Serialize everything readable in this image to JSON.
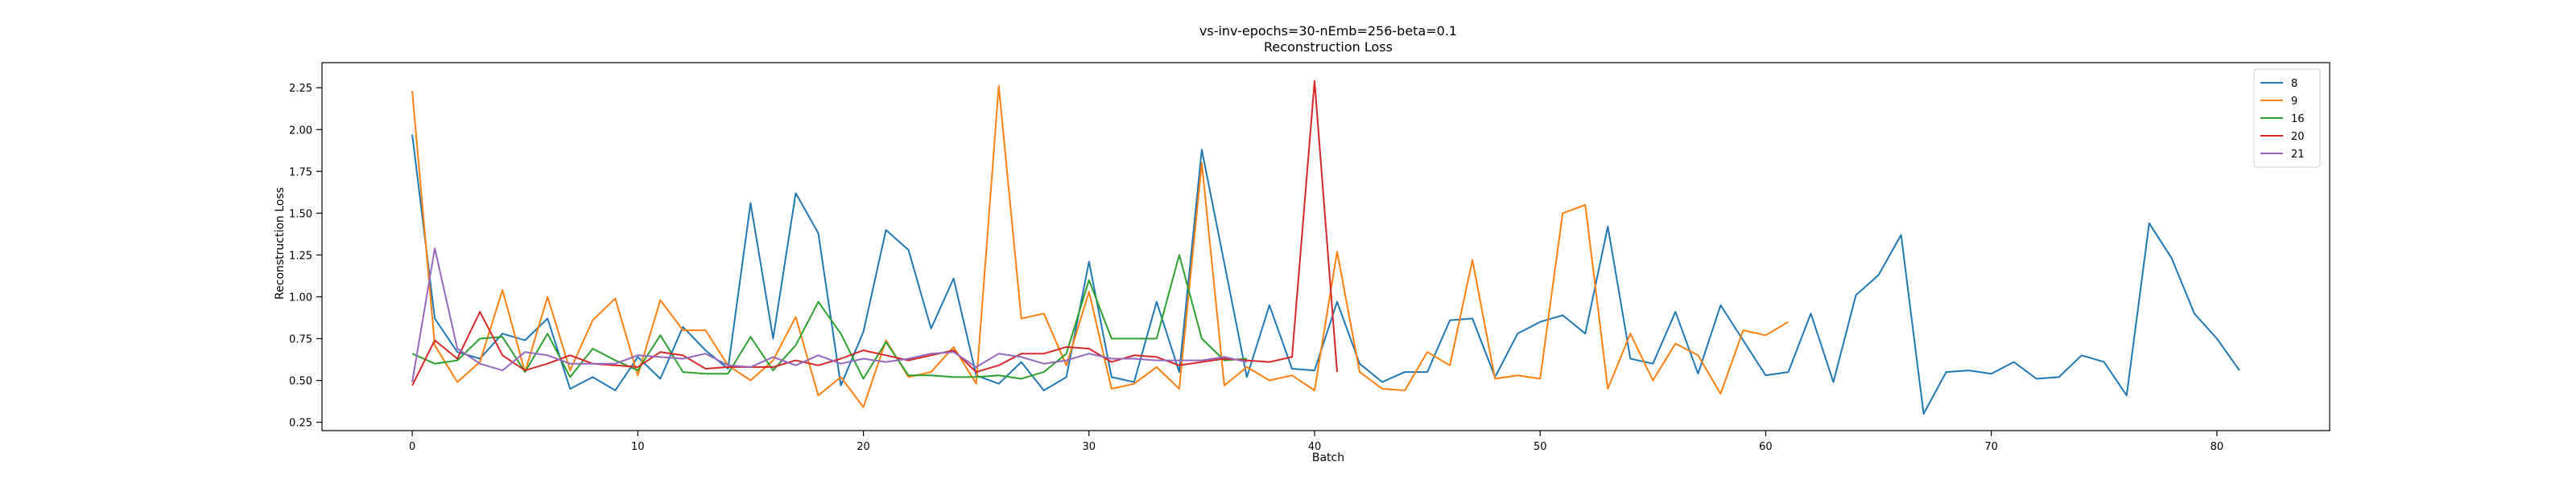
{
  "chart_data": {
    "type": "line",
    "title": "vs-inv-epochs=30-nEmb=256-beta=0.1",
    "subtitle": "Reconstruction Loss",
    "xlabel": "Batch",
    "ylabel": "Reconstruction Loss",
    "xlim": [
      -4,
      85
    ],
    "ylim": [
      0.2,
      2.4
    ],
    "xticks": [
      0,
      10,
      20,
      30,
      40,
      50,
      60,
      70,
      80
    ],
    "yticks": [
      0.25,
      0.5,
      0.75,
      1.0,
      1.25,
      1.5,
      1.75,
      2.0,
      2.25
    ],
    "ytick_labels": [
      "0.25",
      "0.50",
      "0.75",
      "1.00",
      "1.25",
      "1.50",
      "1.75",
      "2.00",
      "2.25"
    ],
    "grid": false,
    "legend_position": "top-right",
    "series": [
      {
        "name": "8",
        "color": "#1f77b4",
        "values": [
          1.97,
          0.87,
          0.67,
          0.63,
          0.78,
          0.74,
          0.87,
          0.45,
          0.52,
          0.44,
          0.64,
          0.51,
          0.82,
          0.68,
          0.57,
          1.56,
          0.75,
          1.62,
          1.38,
          0.47,
          0.79,
          1.4,
          1.28,
          0.81,
          1.11,
          0.53,
          0.48,
          0.61,
          0.44,
          0.52,
          1.21,
          0.52,
          0.49,
          0.97,
          0.55,
          1.88,
          1.2,
          0.52,
          0.95,
          0.57,
          0.56,
          0.97,
          0.6,
          0.49,
          0.55,
          0.55,
          0.86,
          0.87,
          0.52,
          0.78,
          0.85,
          0.89,
          0.78,
          1.42,
          0.63,
          0.6,
          0.91,
          0.54,
          0.95,
          0.74,
          0.53,
          0.55,
          0.9,
          0.49,
          1.01,
          1.13,
          1.37,
          0.3,
          0.55,
          0.56,
          0.54,
          0.61,
          0.51,
          0.52,
          0.65,
          0.61,
          0.41,
          1.44,
          1.23,
          0.9,
          0.75,
          0.56
        ]
      },
      {
        "name": "9",
        "color": "#ff7f0e",
        "values": [
          2.23,
          0.71,
          0.49,
          0.61,
          1.04,
          0.55,
          1.0,
          0.56,
          0.86,
          0.99,
          0.53,
          0.98,
          0.8,
          0.8,
          0.59,
          0.5,
          0.62,
          0.88,
          0.41,
          0.52,
          0.34,
          0.74,
          0.52,
          0.55,
          0.7,
          0.48,
          2.26,
          0.87,
          0.9,
          0.59,
          1.03,
          0.45,
          0.48,
          0.58,
          0.45,
          1.8,
          0.47,
          0.58,
          0.5,
          0.53,
          0.44,
          1.27,
          0.55,
          0.45,
          0.44,
          0.67,
          0.59,
          1.22,
          0.51,
          0.53,
          0.51,
          1.5,
          1.55,
          0.45,
          0.78,
          0.5,
          0.72,
          0.65,
          0.42,
          0.8,
          0.77,
          0.85
        ]
      },
      {
        "name": "16",
        "color": "#2ca02c",
        "values": [
          0.66,
          0.6,
          0.62,
          0.75,
          0.76,
          0.55,
          0.78,
          0.52,
          0.69,
          0.62,
          0.56,
          0.77,
          0.55,
          0.54,
          0.54,
          0.76,
          0.56,
          0.71,
          0.97,
          0.78,
          0.51,
          0.73,
          0.53,
          0.53,
          0.52,
          0.52,
          0.53,
          0.51,
          0.55,
          0.66,
          1.1,
          0.75,
          0.75,
          0.75,
          1.25,
          0.75,
          0.62,
          0.63
        ]
      },
      {
        "name": "20",
        "color": "#d62728",
        "values": [
          0.47,
          0.74,
          0.63,
          0.91,
          0.65,
          0.56,
          0.6,
          0.65,
          0.6,
          0.59,
          0.58,
          0.67,
          0.65,
          0.57,
          0.58,
          0.58,
          0.58,
          0.62,
          0.59,
          0.63,
          0.68,
          0.65,
          0.62,
          0.65,
          0.68,
          0.55,
          0.59,
          0.66,
          0.66,
          0.7,
          0.69,
          0.61,
          0.65,
          0.64,
          0.59,
          0.61,
          0.63,
          0.62,
          0.61,
          0.64,
          2.29,
          0.55
        ]
      },
      {
        "name": "21",
        "color": "#9467bd",
        "values": [
          0.49,
          1.29,
          0.69,
          0.6,
          0.56,
          0.67,
          0.65,
          0.6,
          0.6,
          0.6,
          0.65,
          0.64,
          0.63,
          0.66,
          0.59,
          0.58,
          0.64,
          0.59,
          0.65,
          0.6,
          0.63,
          0.61,
          0.63,
          0.66,
          0.67,
          0.58,
          0.66,
          0.64,
          0.6,
          0.62,
          0.66,
          0.63,
          0.63,
          0.62,
          0.62,
          0.62,
          0.64,
          0.61
        ]
      }
    ]
  }
}
